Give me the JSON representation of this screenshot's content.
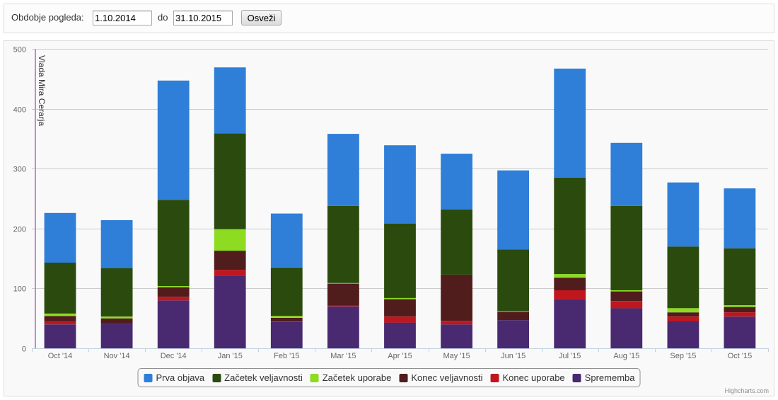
{
  "filter": {
    "period_label": "Obdobje pogleda:",
    "from_value": "1.10.2014",
    "to_label": "do",
    "to_value": "31.10.2015",
    "refresh_label": "Osveži"
  },
  "chart_data": {
    "type": "bar",
    "stacked": true,
    "categories": [
      "Oct '14",
      "Nov '14",
      "Dec '14",
      "Jan '15",
      "Feb '15",
      "Mar '15",
      "Apr '15",
      "May '15",
      "Jun '15",
      "Jul '15",
      "Aug '15",
      "Sep '15",
      "Oct '15"
    ],
    "series": [
      {
        "name": "Prva objava",
        "color": "#2f7ed8",
        "values": [
          83,
          80,
          199,
          110,
          90,
          120,
          131,
          93,
          132,
          182,
          105,
          107,
          100
        ]
      },
      {
        "name": "Začetek veljavnosti",
        "color": "#2a4b0d",
        "values": [
          85,
          81,
          144,
          160,
          81,
          129,
          124,
          109,
          103,
          161,
          141,
          103,
          95
        ]
      },
      {
        "name": "Začetek uporabe",
        "color": "#8ddc22",
        "values": [
          4,
          3,
          2,
          36,
          3,
          1,
          2,
          0,
          1,
          6,
          2,
          7,
          3
        ]
      },
      {
        "name": "Konec veljavnosti",
        "color": "#501c1c",
        "values": [
          9,
          9,
          16,
          32,
          6,
          37,
          29,
          77,
          14,
          21,
          16,
          7,
          9
        ]
      },
      {
        "name": "Konec uporabe",
        "color": "#c0161e",
        "values": [
          5,
          0,
          6,
          10,
          1,
          1,
          10,
          6,
          0,
          15,
          12,
          8,
          7
        ]
      },
      {
        "name": "Sprememba",
        "color": "#492970",
        "values": [
          40,
          41,
          80,
          121,
          44,
          70,
          43,
          40,
          47,
          82,
          67,
          45,
          53
        ]
      }
    ],
    "ylim": [
      0,
      500
    ],
    "yticks": [
      0,
      100,
      200,
      300,
      400,
      500
    ],
    "grid": true,
    "legend": "bottom-center",
    "plot_line": {
      "label": "Vlada Mira Cerarja",
      "color": "#c48ac6"
    },
    "credits": "Highcharts.com"
  }
}
